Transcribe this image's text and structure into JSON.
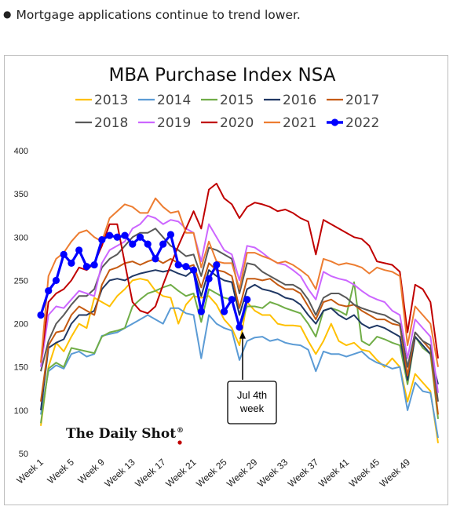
{
  "caption": "Mortgage applications continue to trend lower.",
  "brand": "The Daily Shot",
  "brand_mark": "®",
  "chart_data": {
    "type": "line",
    "title": "MBA Purchase Index NSA",
    "xlabel": "",
    "ylabel": "",
    "ylim": [
      50,
      400
    ],
    "yticks": [
      50,
      100,
      150,
      200,
      250,
      300,
      350,
      400
    ],
    "xtick_labels": [
      "Week 1",
      "Week 5",
      "Week 9",
      "Week 13",
      "Week 17",
      "Week 21",
      "Week 25",
      "Week 29",
      "Week 33",
      "Week 37",
      "Week 41",
      "Week 45",
      "Week 49"
    ],
    "xtick_weeks": [
      1,
      5,
      9,
      13,
      17,
      21,
      25,
      29,
      33,
      37,
      41,
      45,
      49
    ],
    "annotation": {
      "text": [
        "Jul 4th",
        "week"
      ],
      "week": 27,
      "value": 200
    },
    "series": [
      {
        "name": "2013",
        "color": "#FFC000",
        "values": [
          82,
          150,
          178,
          168,
          185,
          200,
          195,
          230,
          225,
          220,
          232,
          240,
          250,
          252,
          250,
          238,
          232,
          230,
          200,
          222,
          232,
          230,
          232,
          222,
          205,
          195,
          175,
          225,
          215,
          210,
          210,
          200,
          198,
          198,
          197,
          180,
          165,
          180,
          200,
          180,
          175,
          178,
          170,
          168,
          158,
          150,
          160,
          150,
          110,
          142,
          132,
          122,
          62
        ]
      },
      {
        "name": "2014",
        "color": "#5B9BD5",
        "values": [
          95,
          145,
          152,
          148,
          165,
          168,
          162,
          165,
          186,
          188,
          190,
          195,
          200,
          205,
          210,
          205,
          200,
          218,
          218,
          212,
          210,
          160,
          210,
          200,
          195,
          192,
          158,
          180,
          184,
          185,
          180,
          182,
          178,
          176,
          175,
          170,
          145,
          168,
          165,
          165,
          162,
          165,
          168,
          160,
          155,
          152,
          148,
          150,
          100,
          132,
          122,
          120,
          68
        ]
      },
      {
        "name": "2015",
        "color": "#70AD47",
        "values": [
          85,
          148,
          155,
          150,
          172,
          170,
          168,
          166,
          185,
          190,
          192,
          195,
          220,
          228,
          235,
          238,
          242,
          245,
          238,
          232,
          235,
          202,
          240,
          235,
          230,
          228,
          195,
          220,
          220,
          218,
          225,
          222,
          218,
          215,
          212,
          200,
          185,
          215,
          218,
          215,
          210,
          248,
          180,
          175,
          185,
          182,
          178,
          175,
          130,
          185,
          172,
          165,
          90
        ]
      },
      {
        "name": "2016",
        "color": "#203864",
        "values": [
          100,
          172,
          178,
          182,
          200,
          210,
          210,
          215,
          240,
          250,
          252,
          250,
          255,
          258,
          260,
          262,
          260,
          262,
          258,
          255,
          262,
          232,
          262,
          255,
          250,
          248,
          210,
          240,
          245,
          240,
          238,
          235,
          230,
          228,
          222,
          210,
          200,
          215,
          218,
          210,
          205,
          210,
          200,
          195,
          198,
          195,
          190,
          185,
          135,
          185,
          175,
          165,
          130
        ]
      },
      {
        "name": "2017",
        "color": "#C55A11",
        "values": [
          110,
          175,
          190,
          192,
          210,
          220,
          215,
          210,
          245,
          262,
          265,
          270,
          272,
          268,
          272,
          275,
          270,
          275,
          270,
          265,
          268,
          242,
          270,
          262,
          260,
          255,
          218,
          252,
          252,
          250,
          252,
          245,
          240,
          240,
          235,
          220,
          205,
          225,
          228,
          222,
          220,
          222,
          215,
          210,
          205,
          205,
          200,
          198,
          140,
          190,
          180,
          170,
          95
        ]
      },
      {
        "name": "2018",
        "color": "#595959",
        "values": [
          145,
          180,
          200,
          210,
          222,
          232,
          232,
          240,
          265,
          275,
          280,
          290,
          300,
          305,
          305,
          310,
          300,
          290,
          285,
          278,
          280,
          255,
          288,
          285,
          280,
          275,
          235,
          270,
          268,
          260,
          255,
          250,
          245,
          245,
          240,
          228,
          210,
          230,
          235,
          235,
          230,
          222,
          218,
          215,
          212,
          210,
          205,
          200,
          150,
          190,
          180,
          175,
          110
        ]
      },
      {
        "name": "2019",
        "color": "#CC66FF",
        "values": [
          150,
          210,
          220,
          218,
          228,
          238,
          235,
          232,
          270,
          285,
          290,
          295,
          310,
          315,
          325,
          322,
          315,
          320,
          318,
          310,
          305,
          272,
          315,
          300,
          285,
          280,
          250,
          290,
          288,
          282,
          275,
          270,
          268,
          262,
          255,
          240,
          228,
          260,
          255,
          252,
          250,
          245,
          238,
          232,
          228,
          225,
          215,
          210,
          160,
          205,
          195,
          185,
          120
        ]
      },
      {
        "name": "2020",
        "color": "#C00000",
        "values": [
          155,
          225,
          235,
          240,
          250,
          265,
          262,
          270,
          290,
          315,
          315,
          270,
          225,
          215,
          212,
          220,
          245,
          268,
          290,
          310,
          330,
          310,
          355,
          362,
          345,
          338,
          322,
          335,
          340,
          338,
          335,
          330,
          332,
          328,
          322,
          318,
          280,
          320,
          315,
          310,
          305,
          300,
          298,
          290,
          272,
          270,
          268,
          260,
          190,
          245,
          240,
          225,
          160
        ]
      },
      {
        "name": "2021",
        "color": "#ED7D31",
        "values": [
          155,
          255,
          275,
          282,
          295,
          305,
          308,
          300,
          295,
          322,
          330,
          338,
          335,
          328,
          328,
          345,
          335,
          328,
          330,
          305,
          305,
          265,
          295,
          272,
          270,
          270,
          240,
          282,
          282,
          278,
          275,
          270,
          272,
          268,
          262,
          255,
          240,
          275,
          272,
          268,
          270,
          268,
          265,
          258,
          265,
          262,
          260,
          255,
          175,
          220,
          210,
          200,
          150
        ]
      },
      {
        "name": "2022",
        "color": "#0000FF",
        "marker": true,
        "values": [
          210,
          238,
          250,
          280,
          270,
          285,
          266,
          268,
          297,
          302,
          300,
          302,
          292,
          300,
          292,
          275,
          292,
          303,
          268,
          266,
          262,
          214,
          252,
          268,
          214,
          228,
          196,
          228
        ]
      }
    ]
  }
}
